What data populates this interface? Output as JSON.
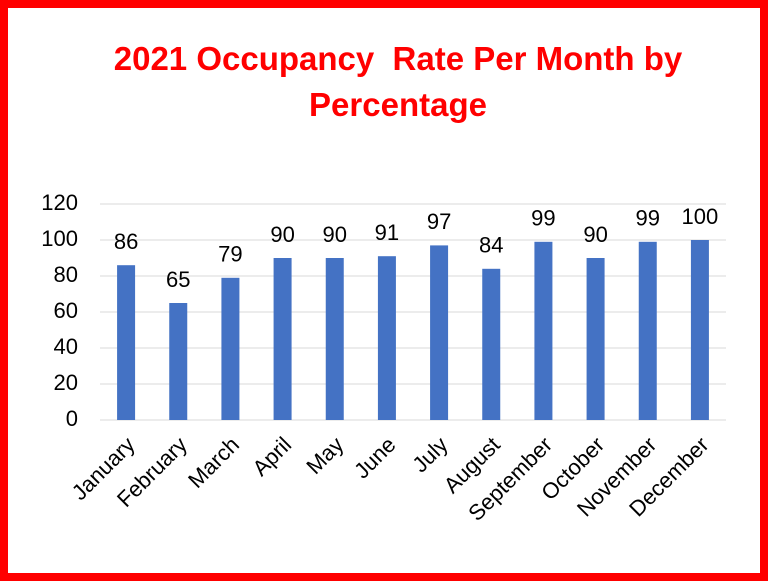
{
  "chart_data": {
    "type": "bar",
    "title": "2021 Occupancy  Rate Per Month by Percentage",
    "categories": [
      "January",
      "February",
      "March",
      "April",
      "May",
      "June",
      "July",
      "August",
      "September",
      "October",
      "November",
      "December"
    ],
    "values": [
      86,
      65,
      79,
      90,
      90,
      91,
      97,
      84,
      99,
      90,
      99,
      100
    ],
    "color": "#4472c4",
    "ylim": [
      0,
      120
    ],
    "yticks": [
      0,
      20,
      40,
      60,
      80,
      100,
      120
    ],
    "grid": true
  }
}
